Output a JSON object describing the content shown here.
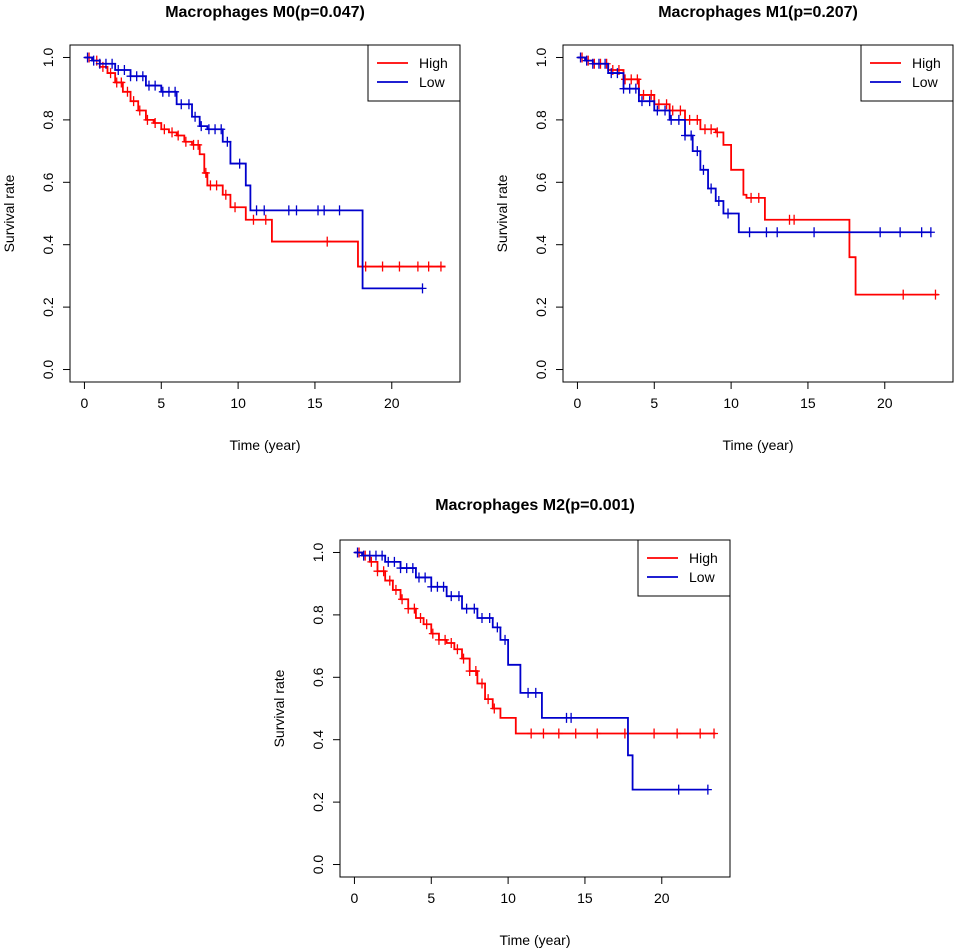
{
  "chart_data": [
    {
      "type": "line",
      "subtype": "kaplan-meier",
      "title": "Macrophages M0(p=0.047)",
      "xlabel": "Time (year)",
      "ylabel": "Survival rate",
      "xlim": [
        0,
        23.5
      ],
      "ylim": [
        0,
        1
      ],
      "xticks": [
        0,
        5,
        10,
        15,
        20
      ],
      "yticks": [
        0.0,
        0.2,
        0.4,
        0.6,
        0.8,
        1.0
      ],
      "legend": [
        "High",
        "Low"
      ],
      "legend_position": "top-right",
      "series": [
        {
          "name": "High",
          "color": "#ff0000",
          "steps": [
            [
              0,
              1.0
            ],
            [
              0.5,
              0.99
            ],
            [
              1,
              0.97
            ],
            [
              1.5,
              0.95
            ],
            [
              2,
              0.92
            ],
            [
              2.5,
              0.89
            ],
            [
              3,
              0.86
            ],
            [
              3.5,
              0.83
            ],
            [
              4,
              0.8
            ],
            [
              4.5,
              0.79
            ],
            [
              5,
              0.77
            ],
            [
              5.5,
              0.76
            ],
            [
              6,
              0.75
            ],
            [
              6.5,
              0.73
            ],
            [
              7,
              0.72
            ],
            [
              7.5,
              0.69
            ],
            [
              7.8,
              0.63
            ],
            [
              8,
              0.59
            ],
            [
              9,
              0.56
            ],
            [
              9.5,
              0.52
            ],
            [
              10.5,
              0.48
            ],
            [
              12.2,
              0.41
            ],
            [
              17.8,
              0.33
            ],
            [
              23.5,
              0.33
            ]
          ],
          "censor": [
            0.3,
            0.8,
            1.2,
            1.7,
            2.1,
            2.4,
            2.8,
            3.2,
            3.6,
            4.1,
            4.6,
            5.2,
            5.7,
            6.1,
            6.6,
            7.1,
            7.4,
            7.9,
            8.2,
            8.6,
            9.2,
            9.8,
            11.0,
            11.8,
            15.8,
            18.3,
            19.4,
            20.5,
            21.7,
            22.4,
            23.2
          ]
        },
        {
          "name": "Low",
          "color": "#0000cc",
          "steps": [
            [
              0,
              1.0
            ],
            [
              0.5,
              0.99
            ],
            [
              1,
              0.98
            ],
            [
              2,
              0.96
            ],
            [
              3,
              0.94
            ],
            [
              4,
              0.91
            ],
            [
              5,
              0.89
            ],
            [
              6,
              0.85
            ],
            [
              7,
              0.81
            ],
            [
              7.5,
              0.78
            ],
            [
              8,
              0.77
            ],
            [
              9,
              0.73
            ],
            [
              9.5,
              0.66
            ],
            [
              10.5,
              0.59
            ],
            [
              10.8,
              0.51
            ],
            [
              18,
              0.51
            ],
            [
              18.1,
              0.26
            ],
            [
              22,
              0.26
            ]
          ],
          "censor": [
            0.2,
            0.6,
            1.0,
            1.4,
            1.8,
            2.2,
            2.6,
            3.0,
            3.4,
            3.8,
            4.2,
            4.6,
            5.1,
            5.5,
            5.9,
            6.3,
            6.8,
            7.2,
            7.6,
            8.1,
            8.5,
            8.9,
            9.3,
            10.1,
            11.2,
            11.7,
            13.3,
            13.8,
            15.2,
            15.6,
            16.6,
            22.0
          ]
        }
      ]
    },
    {
      "type": "line",
      "subtype": "kaplan-meier",
      "title": "Macrophages M1(p=0.207)",
      "xlabel": "Time (year)",
      "ylabel": "Survival rate",
      "xlim": [
        0,
        23.5
      ],
      "ylim": [
        0,
        1
      ],
      "xticks": [
        0,
        5,
        10,
        15,
        20
      ],
      "yticks": [
        0.0,
        0.2,
        0.4,
        0.6,
        0.8,
        1.0
      ],
      "legend": [
        "High",
        "Low"
      ],
      "legend_position": "top-right",
      "series": [
        {
          "name": "High",
          "color": "#ff0000",
          "steps": [
            [
              0,
              1.0
            ],
            [
              0.5,
              0.99
            ],
            [
              1,
              0.98
            ],
            [
              2,
              0.96
            ],
            [
              3,
              0.93
            ],
            [
              4,
              0.88
            ],
            [
              5,
              0.85
            ],
            [
              6,
              0.83
            ],
            [
              7,
              0.8
            ],
            [
              8,
              0.77
            ],
            [
              9,
              0.76
            ],
            [
              9.5,
              0.72
            ],
            [
              10,
              0.64
            ],
            [
              10.8,
              0.56
            ],
            [
              11,
              0.55
            ],
            [
              12.2,
              0.48
            ],
            [
              17.7,
              0.36
            ],
            [
              18.1,
              0.24
            ],
            [
              23.5,
              0.24
            ]
          ],
          "censor": [
            0.3,
            0.7,
            1.1,
            1.5,
            1.9,
            2.3,
            2.7,
            3.1,
            3.5,
            3.9,
            4.3,
            4.8,
            5.3,
            5.8,
            6.2,
            6.7,
            7.3,
            7.8,
            8.3,
            8.7,
            9.1,
            11.3,
            11.8,
            13.8,
            14.1,
            21.2,
            23.3
          ]
        },
        {
          "name": "Low",
          "color": "#0000cc",
          "steps": [
            [
              0,
              1.0
            ],
            [
              0.5,
              0.99
            ],
            [
              1,
              0.98
            ],
            [
              2,
              0.95
            ],
            [
              3,
              0.9
            ],
            [
              4,
              0.86
            ],
            [
              5,
              0.83
            ],
            [
              6,
              0.8
            ],
            [
              7,
              0.75
            ],
            [
              7.5,
              0.7
            ],
            [
              8,
              0.64
            ],
            [
              8.5,
              0.58
            ],
            [
              9,
              0.54
            ],
            [
              9.5,
              0.5
            ],
            [
              10.5,
              0.44
            ],
            [
              23,
              0.44
            ]
          ],
          "censor": [
            0.2,
            0.6,
            1.0,
            1.4,
            1.8,
            2.2,
            2.6,
            3.0,
            3.4,
            3.8,
            4.2,
            4.7,
            5.2,
            5.7,
            6.1,
            6.6,
            7.0,
            7.4,
            7.8,
            8.2,
            8.7,
            9.2,
            9.8,
            11.2,
            12.3,
            13.0,
            15.4,
            19.7,
            21.0,
            22.4,
            23.0
          ]
        }
      ]
    },
    {
      "type": "line",
      "subtype": "kaplan-meier",
      "title": "Macrophages M2(p=0.001)",
      "xlabel": "Time (year)",
      "ylabel": "Survival rate",
      "xlim": [
        0,
        23.5
      ],
      "ylim": [
        0,
        1
      ],
      "xticks": [
        0,
        5,
        10,
        15,
        20
      ],
      "yticks": [
        0.0,
        0.2,
        0.4,
        0.6,
        0.8,
        1.0
      ],
      "legend": [
        "High",
        "Low"
      ],
      "legend_position": "top-right",
      "series": [
        {
          "name": "High",
          "color": "#ff0000",
          "steps": [
            [
              0,
              1.0
            ],
            [
              0.5,
              0.99
            ],
            [
              1,
              0.97
            ],
            [
              1.5,
              0.94
            ],
            [
              2,
              0.91
            ],
            [
              2.5,
              0.88
            ],
            [
              3,
              0.85
            ],
            [
              3.5,
              0.82
            ],
            [
              4,
              0.79
            ],
            [
              4.5,
              0.77
            ],
            [
              5,
              0.74
            ],
            [
              5.5,
              0.72
            ],
            [
              6,
              0.71
            ],
            [
              6.5,
              0.69
            ],
            [
              7,
              0.66
            ],
            [
              7.5,
              0.62
            ],
            [
              8,
              0.58
            ],
            [
              8.5,
              0.53
            ],
            [
              9,
              0.5
            ],
            [
              9.5,
              0.47
            ],
            [
              10.5,
              0.42
            ],
            [
              23.5,
              0.42
            ]
          ],
          "censor": [
            0.3,
            0.7,
            1.1,
            1.5,
            1.9,
            2.3,
            2.7,
            3.1,
            3.5,
            3.9,
            4.3,
            4.7,
            5.1,
            5.5,
            5.9,
            6.3,
            6.7,
            7.1,
            7.5,
            7.9,
            8.3,
            8.7,
            9.1,
            11.5,
            12.3,
            13.3,
            14.4,
            15.8,
            17.6,
            19.5,
            21.0,
            22.5,
            23.4
          ]
        },
        {
          "name": "Low",
          "color": "#0000cc",
          "steps": [
            [
              0,
              1.0
            ],
            [
              0.5,
              0.99
            ],
            [
              1,
              0.99
            ],
            [
              2,
              0.97
            ],
            [
              3,
              0.95
            ],
            [
              4,
              0.92
            ],
            [
              5,
              0.89
            ],
            [
              6,
              0.86
            ],
            [
              7,
              0.82
            ],
            [
              8,
              0.79
            ],
            [
              9,
              0.76
            ],
            [
              9.5,
              0.72
            ],
            [
              10,
              0.64
            ],
            [
              10.8,
              0.55
            ],
            [
              11,
              0.55
            ],
            [
              12.2,
              0.47
            ],
            [
              17.8,
              0.35
            ],
            [
              18.1,
              0.24
            ],
            [
              23,
              0.24
            ]
          ],
          "censor": [
            0.2,
            0.6,
            1.0,
            1.4,
            1.8,
            2.2,
            2.6,
            3.0,
            3.4,
            3.8,
            4.2,
            4.6,
            5.0,
            5.4,
            5.8,
            6.3,
            6.8,
            7.3,
            7.8,
            8.3,
            8.8,
            9.3,
            9.8,
            11.3,
            11.8,
            13.8,
            14.1,
            21.1,
            23.0
          ]
        }
      ]
    }
  ]
}
